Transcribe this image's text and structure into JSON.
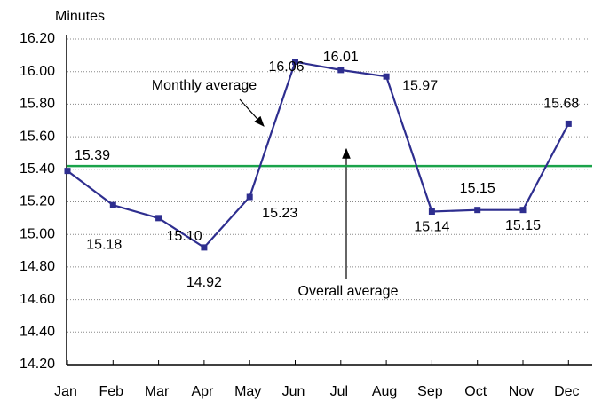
{
  "chart_data": {
    "type": "line",
    "y_axis_label": "Minutes",
    "categories": [
      "Jan",
      "Feb",
      "Mar",
      "Apr",
      "May",
      "Jun",
      "Jul",
      "Aug",
      "Sep",
      "Oct",
      "Nov",
      "Dec"
    ],
    "series": [
      {
        "name": "Monthly average",
        "color": "#2e2e8f",
        "values": [
          15.39,
          15.18,
          15.1,
          14.92,
          15.23,
          16.06,
          16.01,
          15.97,
          15.14,
          15.15,
          15.15,
          15.68
        ],
        "value_labels": [
          "15.39",
          "15.18",
          "15.10",
          "14.92",
          "15.23",
          "16.06",
          "16.01",
          "15.97",
          "15.14",
          "15.15",
          "15.15",
          "15.68"
        ]
      }
    ],
    "average_line": {
      "name": "Overall average",
      "value": 15.42,
      "color": "#1aa34a"
    },
    "ylim": [
      14.2,
      16.2
    ],
    "yticks": [
      {
        "value": 14.2,
        "label": "14.20"
      },
      {
        "value": 14.4,
        "label": "14.40"
      },
      {
        "value": 14.6,
        "label": "14.60"
      },
      {
        "value": 14.8,
        "label": "14.80"
      },
      {
        "value": 15.0,
        "label": "15.00"
      },
      {
        "value": 15.2,
        "label": "15.20"
      },
      {
        "value": 15.4,
        "label": "15.40"
      },
      {
        "value": 15.6,
        "label": "15.60"
      },
      {
        "value": 15.8,
        "label": "15.80"
      },
      {
        "value": 16.0,
        "label": "16.00"
      },
      {
        "value": 16.2,
        "label": "16.20"
      }
    ],
    "grid": true
  }
}
